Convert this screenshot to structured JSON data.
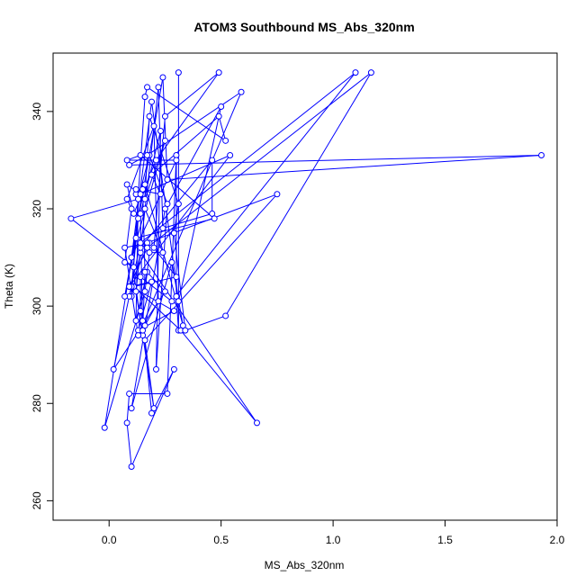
{
  "chart_data": {
    "type": "line",
    "title": "ATOM3 Southbound MS_Abs_320nm",
    "xlabel": "MS_Abs_320nm",
    "ylabel": "Theta (K)",
    "xlim": [
      -0.25,
      2.0
    ],
    "ylim": [
      256,
      352
    ],
    "x_ticks": [
      0.0,
      0.5,
      1.0,
      1.5,
      2.0
    ],
    "x_tick_labels": [
      "0.0",
      "0.5",
      "1.0",
      "1.5",
      "2.0"
    ],
    "y_ticks": [
      260,
      280,
      300,
      320,
      340
    ],
    "y_tick_labels": [
      "260",
      "280",
      "300",
      "320",
      "340"
    ],
    "grid": false,
    "legend": "none",
    "line_color": "#0000ff",
    "marker": "open-circle",
    "series": [
      {
        "x": [
          0.31,
          0.31,
          0.3,
          0.3,
          0.26,
          0.09,
          0.08,
          0.1,
          0.29,
          0.19,
          0.15,
          0.14,
          0.16,
          0.22,
          0.2,
          0.08,
          0.1,
          0.07,
          0.11,
          -0.17,
          0.13,
          0.12,
          0.12,
          0.23,
          0.19,
          0.49,
          0.52,
          0.17,
          0.16,
          0.1,
          0.14,
          0.66,
          0.32,
          0.11,
          0.3,
          0.2,
          0.25,
          0.49,
          0.21,
          0.11,
          0.08,
          0.14,
          0.54,
          0.09,
          0.18,
          0.14,
          0.46,
          0.46,
          0.24,
          0.22,
          0.12,
          0.2,
          0.16,
          0.75,
          0.17,
          0.07,
          0.13,
          0.14,
          0.14,
          0.28,
          1.1,
          0.14,
          0.09,
          0.02,
          0.25,
          0.17,
          0.12,
          0.13,
          0.18,
          0.26,
          0.21,
          0.23,
          0.14,
          0.15,
          0.1,
          0.19,
          0.31,
          0.5,
          0.25,
          0.1,
          0.28,
          0.33,
          0.16,
          0.13,
          0.1,
          0.29,
          0.13,
          0.19,
          0.09,
          0.17,
          1.17,
          0.52,
          0.34,
          0.29,
          0.31,
          0.18,
          0.16,
          0.25,
          0.1,
          0.3,
          0.08,
          0.14,
          0.47,
          0.12,
          0.07,
          0.24,
          0.26,
          1.93,
          0.09,
          0.17,
          0.59,
          0.13,
          0.15,
          0.16,
          0.15,
          -0.02,
          0.16,
          0.18,
          0.24,
          0.16
        ],
        "y": [
          348,
          295,
          302,
          331,
          282,
          282,
          276,
          267,
          287,
          278,
          297,
          299,
          296,
          301,
          337,
          322,
          320,
          309,
          308,
          318,
          322,
          323,
          324,
          323,
          327,
          339,
          334,
          345,
          343,
          302,
          311,
          276,
          295,
          304,
          306,
          312,
          339,
          348,
          330,
          319,
          325,
          323,
          331,
          304,
          313,
          312,
          330,
          319,
          316,
          345,
          303,
          279,
          293,
          323,
          313,
          312,
          294,
          299,
          306,
          301,
          348,
          313,
          302,
          287,
          303,
          307,
          297,
          322,
          331,
          321,
          287,
          336,
          319,
          294,
          310,
          342,
          301,
          341,
          320,
          279,
          309,
          296,
          325,
          318,
          304,
          299,
          295,
          305,
          304,
          312,
          348,
          298,
          295,
          315,
          321,
          339,
          322,
          334,
          310,
          330,
          330,
          331,
          318,
          314,
          302,
          347,
          326,
          331,
          329,
          331,
          344,
          294,
          295,
          307,
          324,
          275,
          303,
          311,
          311,
          320
        ]
      }
    ]
  }
}
